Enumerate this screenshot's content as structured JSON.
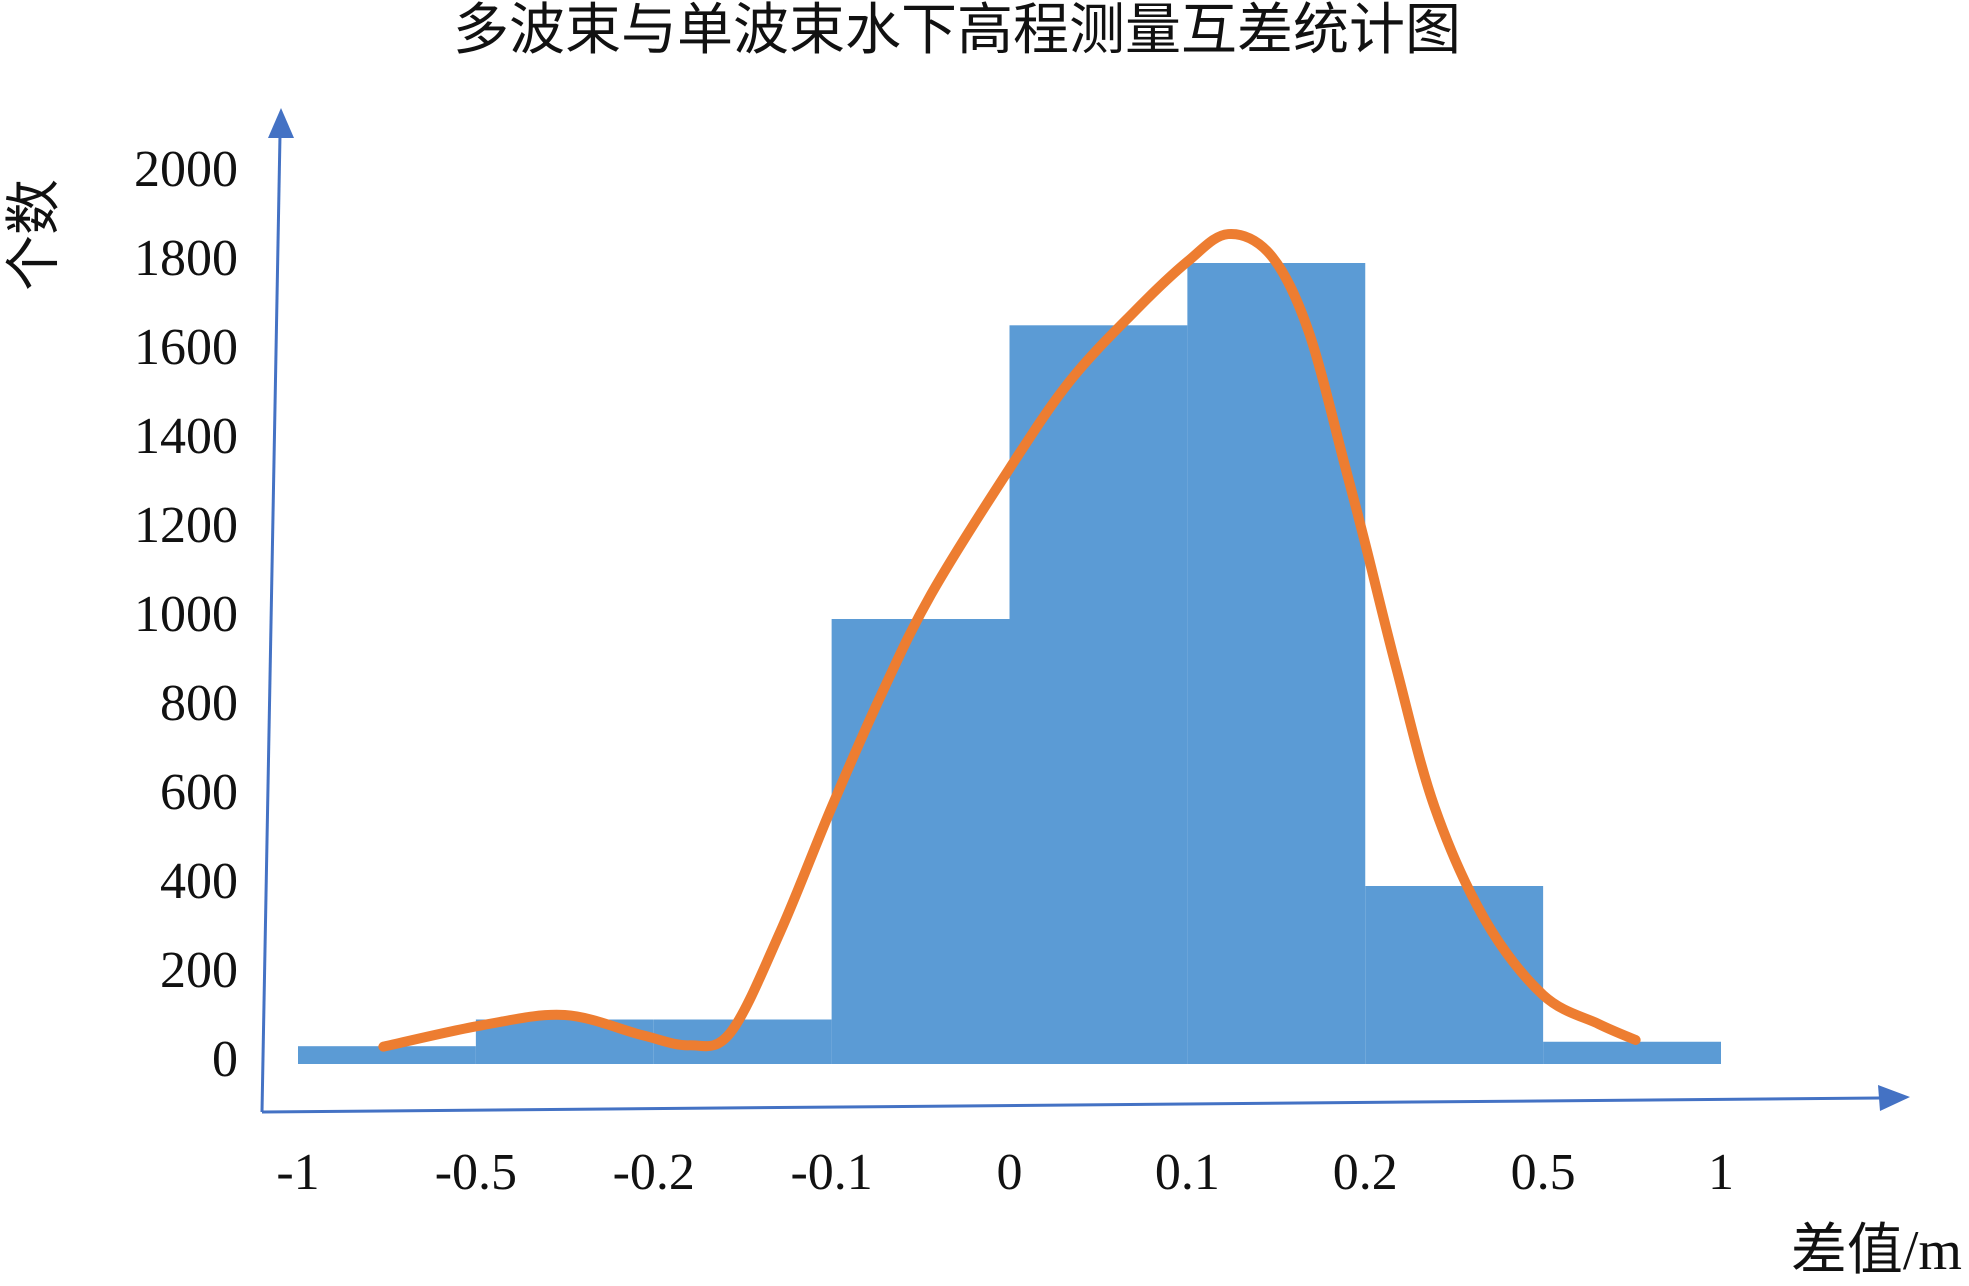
{
  "chart_data": {
    "type": "histogram",
    "title": "多波束与单波束水下高程测量互差统计图",
    "x_label": "差值/m",
    "y_label": "个数",
    "bins": [
      -1,
      -0.5,
      -0.2,
      -0.1,
      0,
      0.1,
      0.2,
      0.5,
      1
    ],
    "values": [
      40,
      100,
      100,
      1000,
      1660,
      1800,
      400,
      50
    ],
    "color": "#5b9bd5",
    "curve": {
      "color": "#ed7d31",
      "x": [
        -0.76,
        -0.49,
        -0.35,
        -0.22,
        -0.18,
        -0.157,
        -0.129,
        -0.1,
        -0.072,
        -0.044,
        0,
        0.034,
        0.07,
        0.1,
        0.123,
        0.147,
        0.168,
        0.189,
        0.2,
        0.253,
        0.317,
        0.402,
        0.5,
        0.656,
        0.76
      ],
      "values": [
        39,
        87,
        110,
        65,
        42,
        70,
        296,
        577,
        831,
        1056,
        1338,
        1535,
        1690,
        1803,
        1865,
        1817,
        1648,
        1338,
        1169,
        887,
        577,
        324,
        155,
        90,
        54
      ]
    },
    "ylim": [
      0,
      2000
    ],
    "yticks": [
      0,
      200,
      400,
      600,
      800,
      1000,
      1200,
      1400,
      1600,
      1800,
      2000
    ],
    "grid": false
  }
}
